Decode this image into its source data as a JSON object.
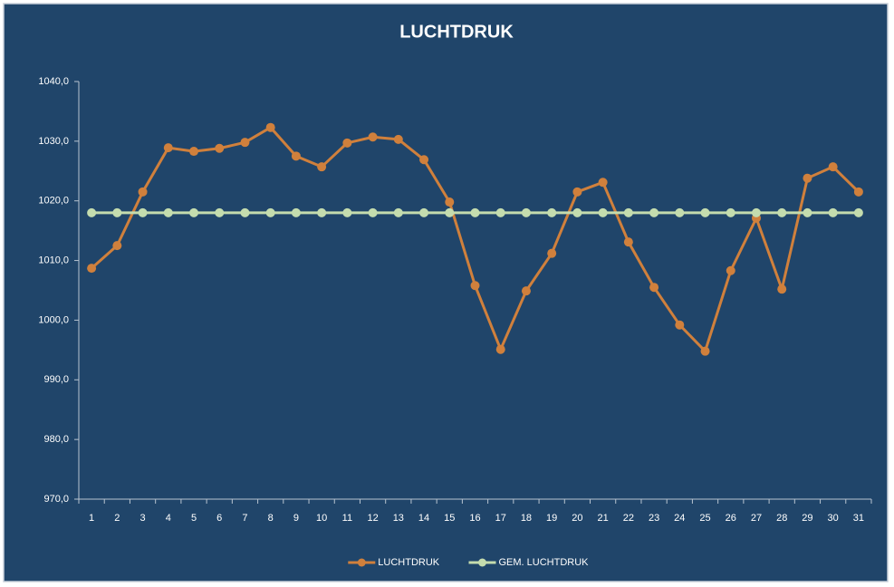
{
  "chart_data": {
    "type": "line",
    "title": "LUCHTDRUK",
    "categories": [
      "1",
      "2",
      "3",
      "4",
      "5",
      "6",
      "7",
      "8",
      "9",
      "10",
      "11",
      "12",
      "13",
      "14",
      "15",
      "16",
      "17",
      "18",
      "19",
      "20",
      "21",
      "22",
      "23",
      "24",
      "25",
      "26",
      "27",
      "28",
      "29",
      "30",
      "31"
    ],
    "series": [
      {
        "name": "LUCHTDRUK",
        "color": "#d0803c",
        "values": [
          1008.7,
          1012.5,
          1021.5,
          1028.9,
          1028.3,
          1028.8,
          1029.8,
          1032.3,
          1027.5,
          1025.7,
          1029.7,
          1030.7,
          1030.3,
          1026.9,
          1019.8,
          1005.8,
          995.1,
          1004.9,
          1011.2,
          1021.5,
          1023.1,
          1013.1,
          1005.5,
          999.2,
          994.8,
          1008.3,
          1017.1,
          1005.2,
          1023.8,
          1025.7,
          1021.5
        ]
      },
      {
        "name": "GEM. LUCHTDRUK",
        "color": "#c4dcae",
        "values": [
          1018.0,
          1018.0,
          1018.0,
          1018.0,
          1018.0,
          1018.0,
          1018.0,
          1018.0,
          1018.0,
          1018.0,
          1018.0,
          1018.0,
          1018.0,
          1018.0,
          1018.0,
          1018.0,
          1018.0,
          1018.0,
          1018.0,
          1018.0,
          1018.0,
          1018.0,
          1018.0,
          1018.0,
          1018.0,
          1018.0,
          1018.0,
          1018.0,
          1018.0,
          1018.0,
          1018.0
        ]
      }
    ],
    "ylim": [
      970,
      1040
    ],
    "yticks": [
      {
        "value": 970,
        "label": "970,0"
      },
      {
        "value": 980,
        "label": "980,0"
      },
      {
        "value": 990,
        "label": "990,0"
      },
      {
        "value": 1000,
        "label": "1000,0"
      },
      {
        "value": 1010,
        "label": "1010,0"
      },
      {
        "value": 1020,
        "label": "1020,0"
      },
      {
        "value": 1030,
        "label": "1030,0"
      },
      {
        "value": 1040,
        "label": "1040,0"
      }
    ],
    "grid": false,
    "legend": "bottom"
  }
}
